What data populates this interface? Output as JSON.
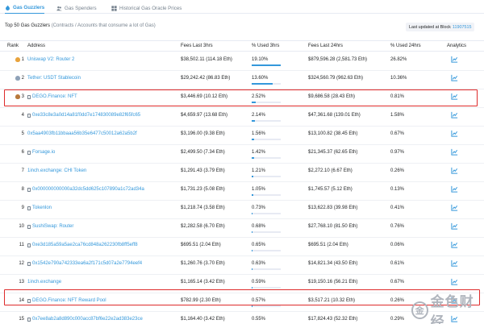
{
  "tabs": [
    {
      "label": "Gas Guzzlers",
      "icon": "flame-icon",
      "active": true
    },
    {
      "label": "Gas Spenders",
      "icon": "users-icon",
      "active": false
    },
    {
      "label": "Historical Gas Oracle Prices",
      "icon": "grid-icon",
      "active": false
    }
  ],
  "subtitle": {
    "main": "Top 50 Gas Guzzlers",
    "note": "(Contracts / Accounts that consume a lot of Gas)"
  },
  "last_updated": {
    "label": "Last updated at Block",
    "block": "11907515"
  },
  "columns": {
    "rank": "Rank",
    "address": "Address",
    "fees3": "Fees Last 3hrs",
    "used3": "% Used 3hrs",
    "fees24": "Fees Last 24hrs",
    "used24": "% Used 24hrs",
    "analytics": "Analytics"
  },
  "colors": {
    "accent": "#3498db",
    "highlight": "#de2b2b",
    "gold": "#e8a33d",
    "silver": "#8fa2b8",
    "bronze": "#b8793c"
  },
  "rows": [
    {
      "rank": "1",
      "medal": "gold",
      "address": "Uniswap V2: Router 2",
      "doc": false,
      "fees3": "$38,502.11 (114.18 Eth)",
      "used3": "19.10%",
      "used3_value": 19.1,
      "fees24": "$879,596.28 (2,581.73 Eth)",
      "used24": "26.82%"
    },
    {
      "rank": "2",
      "medal": "silver",
      "address": "Tether: USDT Stablecoin",
      "doc": false,
      "fees3": "$29,242.42 (86.83 Eth)",
      "used3": "13.60%",
      "used3_value": 13.6,
      "fees24": "$324,560.79 (962.63 Eth)",
      "used24": "10.36%"
    },
    {
      "rank": "3",
      "medal": "bronze",
      "address": "DEGO.Finance: NFT",
      "doc": true,
      "fees3": "$3,446.69 (10.12 Eth)",
      "used3": "2.52%",
      "used3_value": 2.52,
      "fees24": "$9,686.58 (28.43 Eth)",
      "used24": "0.81%"
    },
    {
      "rank": "4",
      "medal": "",
      "address": "0xe33c8e3a0d14a81f0dd7e174830089e82f65fc65",
      "doc": true,
      "fees3": "$4,659.97 (13.68 Eth)",
      "used3": "2.14%",
      "used3_value": 2.14,
      "fees24": "$47,361.68 (139.01 Eth)",
      "used24": "1.58%"
    },
    {
      "rank": "5",
      "medal": "",
      "address": "0x5aa4903fb11bbaaa56b35e6477c50012a62a5b2f",
      "doc": false,
      "fees3": "$3,196.00 (9.38 Eth)",
      "used3": "1.56%",
      "used3_value": 1.56,
      "fees24": "$13,100.82 (38.45 Eth)",
      "used24": "0.67%"
    },
    {
      "rank": "6",
      "medal": "",
      "address": "Forsage.io",
      "doc": true,
      "fees3": "$2,499.50 (7.34 Eth)",
      "used3": "1.42%",
      "used3_value": 1.42,
      "fees24": "$21,345.37 (62.65 Eth)",
      "used24": "0.97%"
    },
    {
      "rank": "7",
      "medal": "",
      "address": "1inch.exchange: CHI Token",
      "doc": false,
      "fees3": "$1,291.43 (3.79 Eth)",
      "used3": "1.21%",
      "used3_value": 1.21,
      "fees24": "$2,272.10 (6.67 Eth)",
      "used24": "0.26%"
    },
    {
      "rank": "8",
      "medal": "",
      "address": "0x000000000000a32dc5dd625c107890a1c72ad34a",
      "doc": true,
      "fees3": "$1,731.23 (5.08 Eth)",
      "used3": "1.05%",
      "used3_value": 1.05,
      "fees24": "$1,745.57 (5.12 Eth)",
      "used24": "0.13%"
    },
    {
      "rank": "9",
      "medal": "",
      "address": "Tokenlon",
      "doc": true,
      "fees3": "$1,218.74 (3.58 Eth)",
      "used3": "0.73%",
      "used3_value": 0.73,
      "fees24": "$13,622.83 (39.98 Eth)",
      "used24": "0.41%"
    },
    {
      "rank": "10",
      "medal": "",
      "address": "SushiSwap: Router",
      "doc": true,
      "fees3": "$2,282.58 (6.70 Eth)",
      "used3": "0.68%",
      "used3_value": 0.68,
      "fees24": "$27,768.10 (81.50 Eth)",
      "used24": "0.76%"
    },
    {
      "rank": "11",
      "medal": "",
      "address": "0xe3d185a59a5ae2ca76cd848a262230fb8ff5eff8",
      "doc": true,
      "fees3": "$695.51 (2.04 Eth)",
      "used3": "0.65%",
      "used3_value": 0.65,
      "fees24": "$695.51 (2.04 Eth)",
      "used24": "0.06%"
    },
    {
      "rank": "12",
      "medal": "",
      "address": "0x1542e790a742333ea6a2f171c5d07a2e7794eef4",
      "doc": true,
      "fees3": "$1,260.76 (3.70 Eth)",
      "used3": "0.63%",
      "used3_value": 0.63,
      "fees24": "$14,821.34 (43.50 Eth)",
      "used24": "0.61%"
    },
    {
      "rank": "13",
      "medal": "",
      "address": "1inch.exchange",
      "doc": false,
      "fees3": "$1,165.14 (3.42 Eth)",
      "used3": "0.59%",
      "used3_value": 0.59,
      "fees24": "$19,150.16 (56.21 Eth)",
      "used24": "0.67%"
    },
    {
      "rank": "14",
      "medal": "",
      "address": "DEGO.Finance: NFT Reward Pool",
      "doc": true,
      "fees3": "$782.99 (2.30 Eth)",
      "used3": "0.57%",
      "used3_value": 0.57,
      "fees24": "$3,517.21 (10.32 Eth)",
      "used24": "0.26%"
    },
    {
      "rank": "15",
      "medal": "",
      "address": "0x7ee8ab2a8d890c000acc87bf6e22e2ad383e23ce",
      "doc": true,
      "fees3": "$1,164.40 (3.42 Eth)",
      "used3": "0.55%",
      "used3_value": 0.55,
      "fees24": "$17,824.43 (52.32 Eth)",
      "used24": "0.29%"
    }
  ],
  "highlighted_ranks": [
    "3",
    "14"
  ],
  "watermark": {
    "logo_char": "金",
    "text": "金色财经"
  }
}
